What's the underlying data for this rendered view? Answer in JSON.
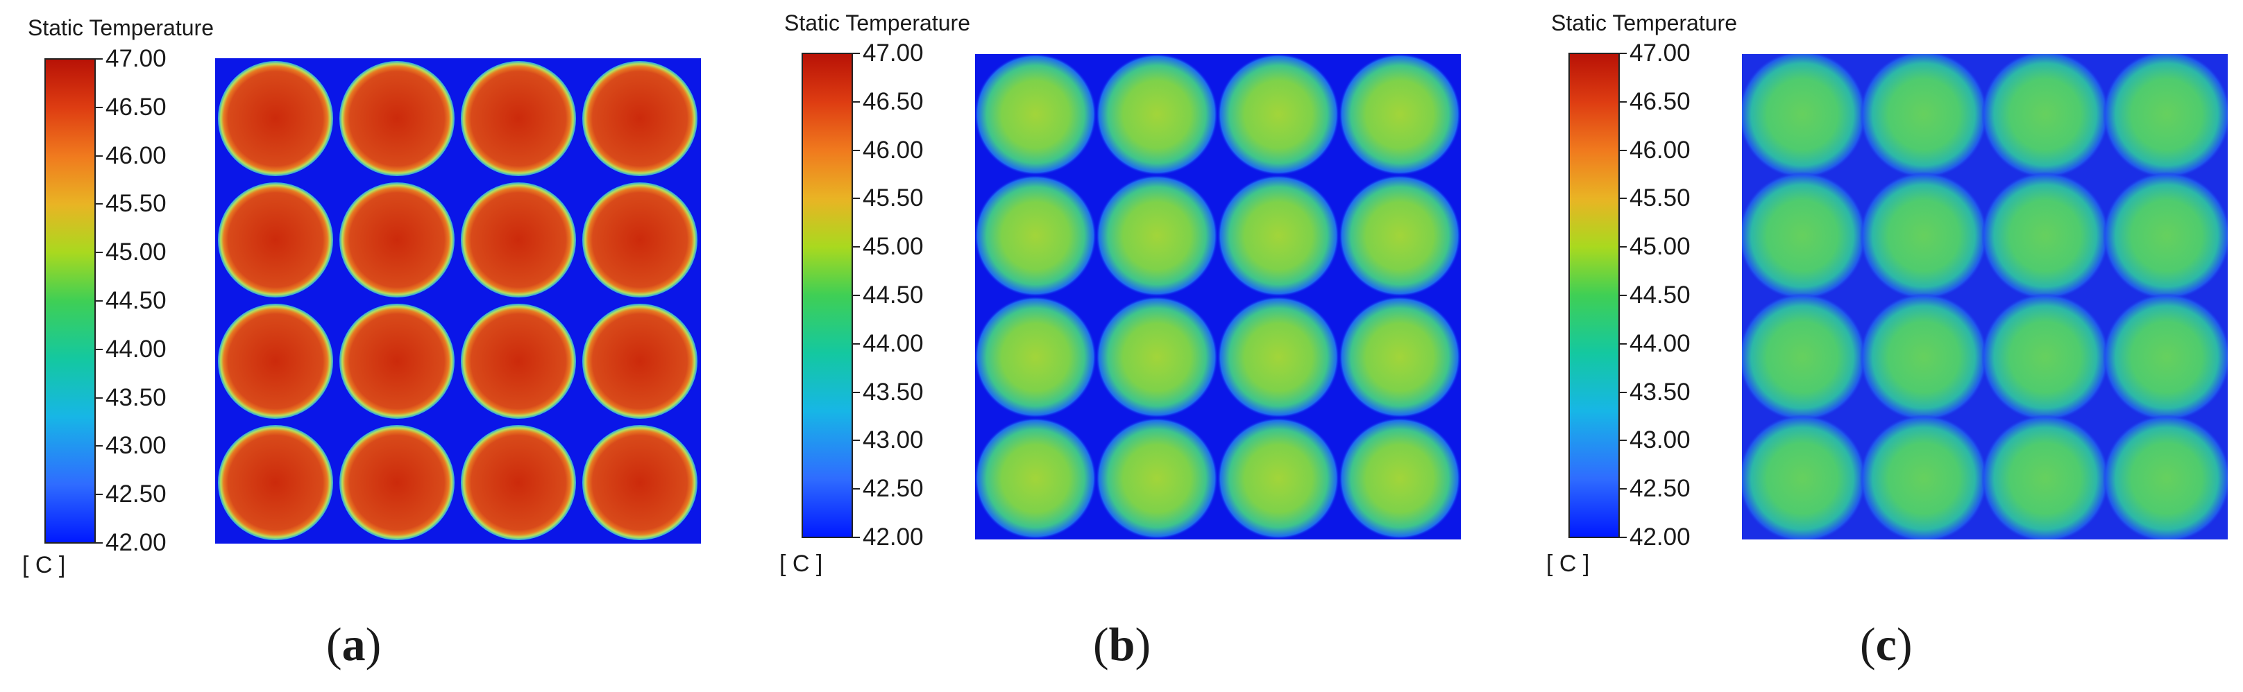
{
  "panels": [
    {
      "title": "Static Temperature",
      "unit": "[ C ]",
      "caption_letter": "a",
      "ticks": [
        "47.00",
        "46.50",
        "46.00",
        "45.50",
        "45.00",
        "44.50",
        "44.00",
        "43.50",
        "43.00",
        "42.50",
        "42.00"
      ]
    },
    {
      "title": "Static Temperature",
      "unit": "[ C ]",
      "caption_letter": "b",
      "ticks": [
        "47.00",
        "46.50",
        "46.00",
        "45.50",
        "45.00",
        "44.50",
        "44.00",
        "43.50",
        "43.00",
        "42.50",
        "42.00"
      ]
    },
    {
      "title": "Static Temperature",
      "unit": "[ C ]",
      "caption_letter": "c",
      "ticks": [
        "47.00",
        "46.50",
        "46.00",
        "45.50",
        "45.00",
        "44.50",
        "44.00",
        "43.50",
        "43.00",
        "42.50",
        "42.00"
      ]
    }
  ],
  "colors": {
    "background_cold": "#0a16e8",
    "hot_core": "#c92a0c",
    "hot_mid": "#d8461a",
    "ring": "#a8e25a",
    "warm_green_core": "#9dd33a",
    "warm_green_mid": "#6fcf55",
    "cool_green_core": "#5fcf6a",
    "cool_green_mid": "#3fc58c"
  }
}
